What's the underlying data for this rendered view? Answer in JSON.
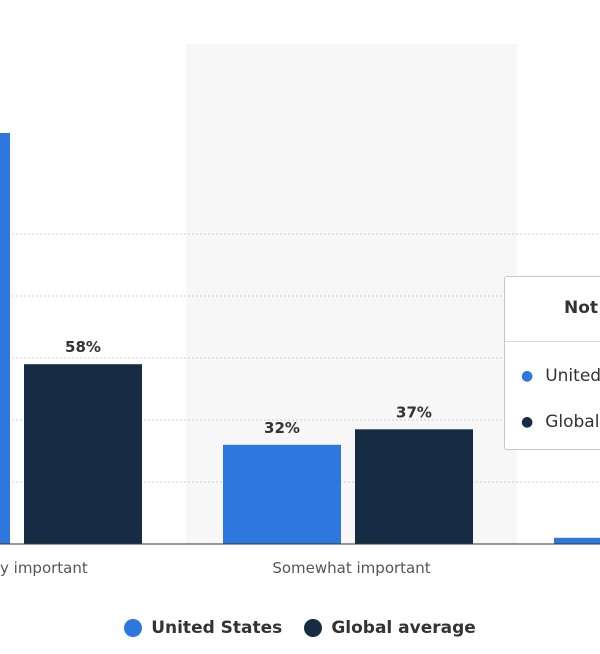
{
  "chart_data": {
    "type": "bar",
    "categories": [
      "Very important",
      "Somewhat important",
      "Not important"
    ],
    "series": [
      {
        "name": "United States",
        "values": [
          null,
          32,
          2
        ],
        "color": "#2c78de"
      },
      {
        "name": "Global average",
        "values": [
          58,
          37,
          null
        ],
        "color": "#162c45"
      }
    ],
    "visible_category_labels": [
      "y important",
      "Somewhat important",
      ""
    ],
    "ylim": [
      0,
      100
    ],
    "grid": true,
    "legend_position": "bottom-center"
  },
  "legend": {
    "items": [
      {
        "label": "United States",
        "color": "#2c78de"
      },
      {
        "label": "Global average",
        "color": "#162c45"
      }
    ]
  },
  "tooltip": {
    "title": "Not",
    "rows": [
      {
        "label": "United",
        "color": "#2c78de"
      },
      {
        "label": "Global",
        "color": "#162c45"
      }
    ]
  }
}
